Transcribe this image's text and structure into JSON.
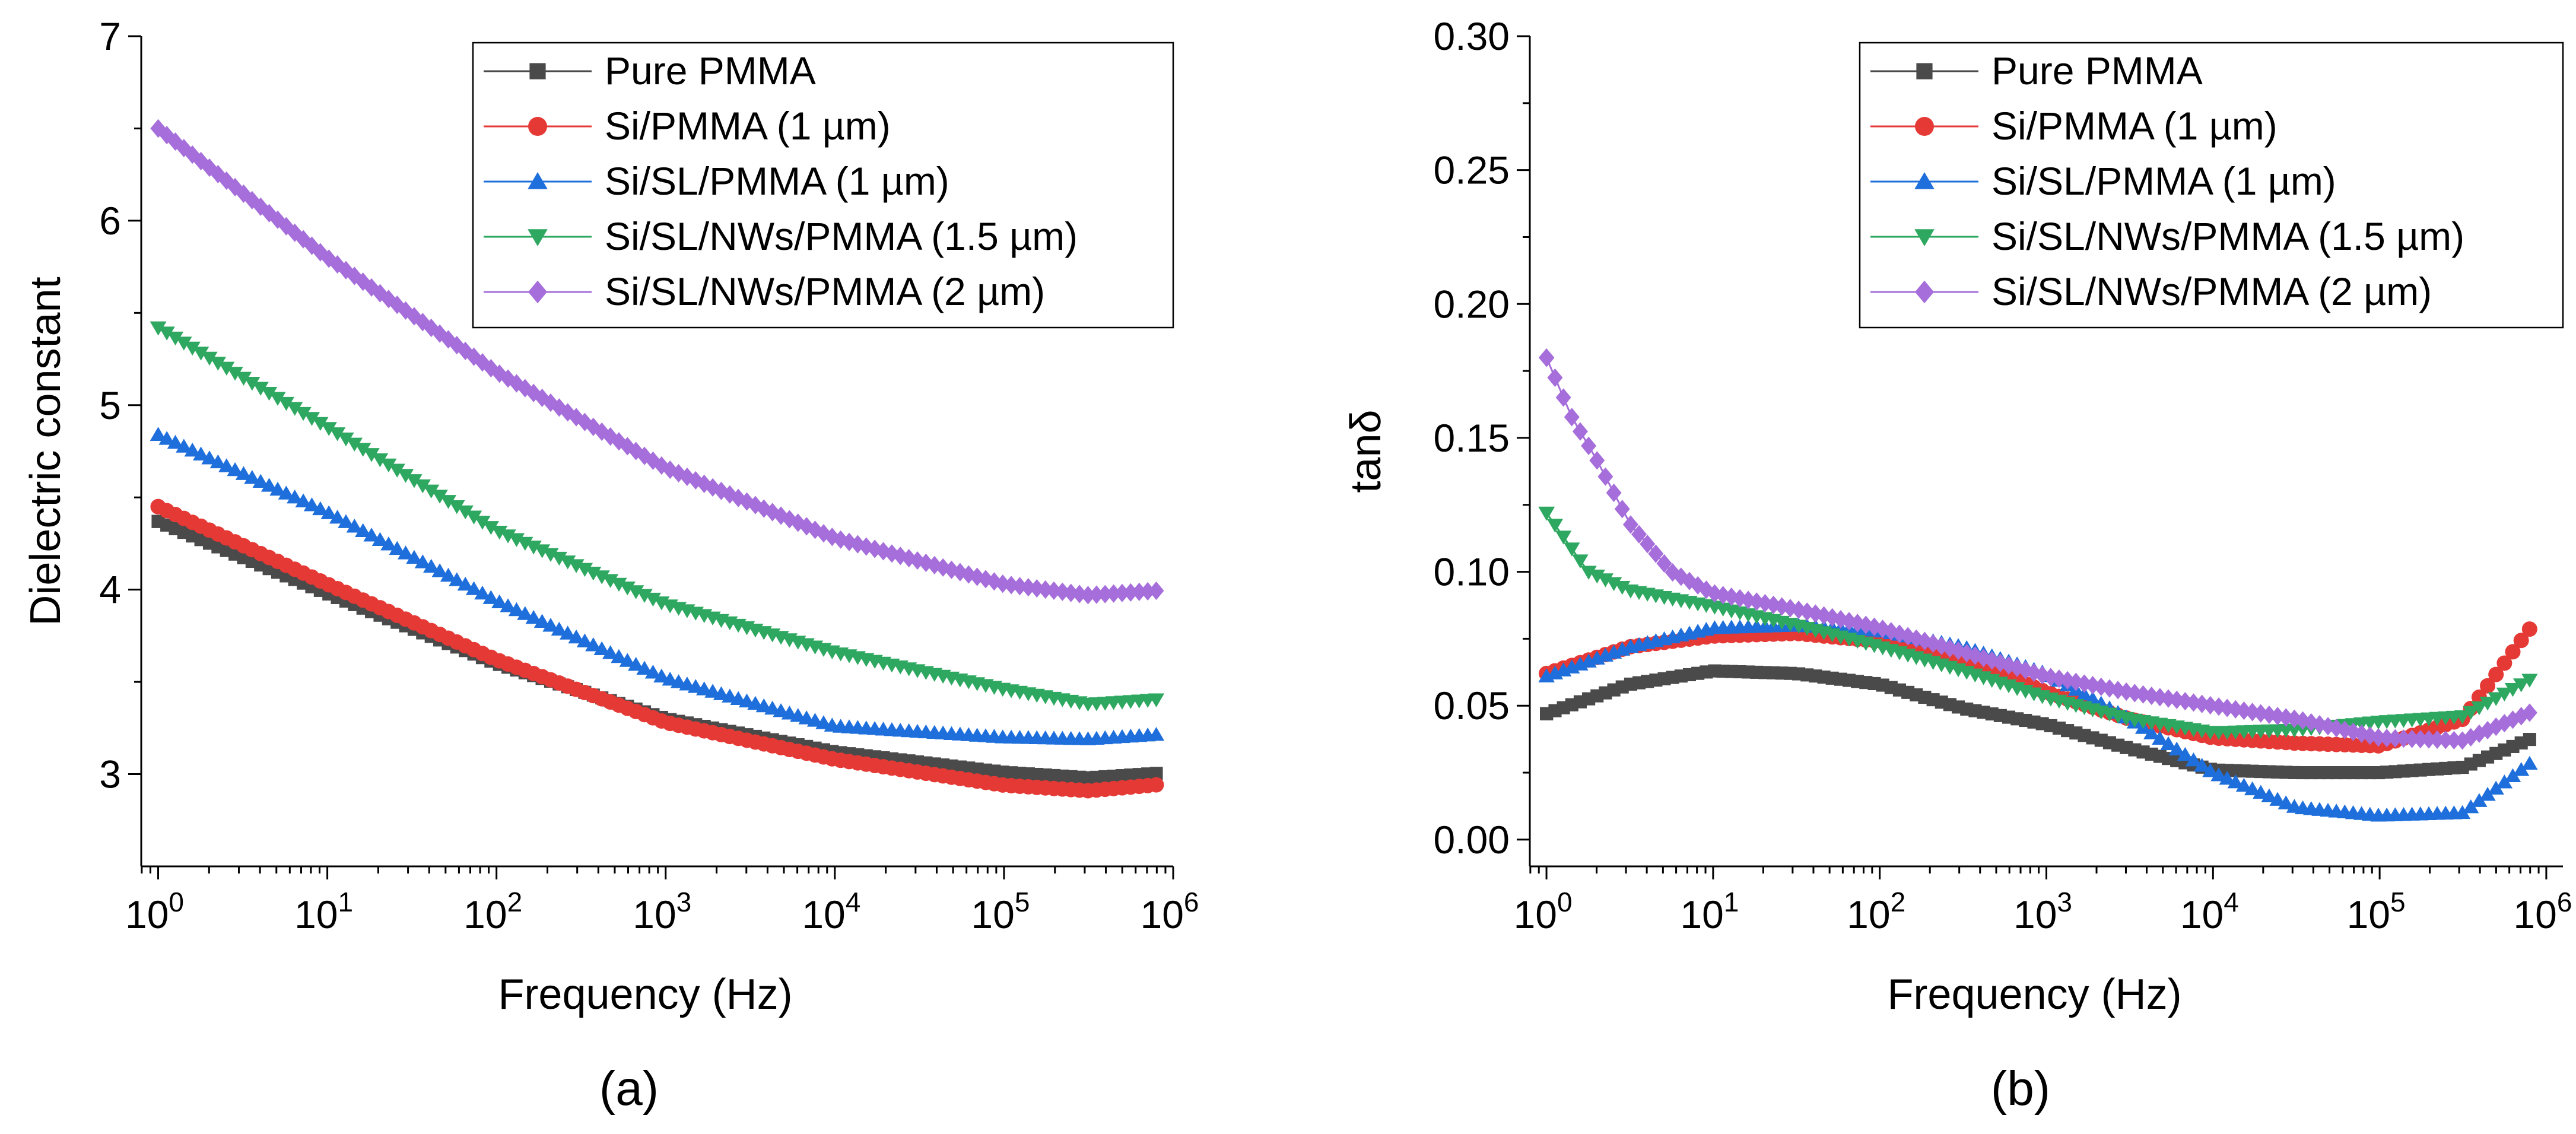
{
  "chart_data": [
    {
      "type": "scatter",
      "panel_label": "(a)",
      "xlabel": "Frequency (Hz)",
      "ylabel": "Dielectric constant",
      "xscale": "log",
      "xlim_log10": [
        -0.1,
        6.0
      ],
      "x_ticks": [
        {
          "base": "10",
          "exp": "0",
          "value": 1
        },
        {
          "base": "10",
          "exp": "1",
          "value": 10
        },
        {
          "base": "10",
          "exp": "2",
          "value": 100
        },
        {
          "base": "10",
          "exp": "3",
          "value": 1000
        },
        {
          "base": "10",
          "exp": "4",
          "value": 10000
        },
        {
          "base": "10",
          "exp": "5",
          "value": 100000
        },
        {
          "base": "10",
          "exp": "6",
          "value": 1000000
        }
      ],
      "ylim": [
        2.5,
        7.0
      ],
      "y_ticks": [
        "3",
        "4",
        "5",
        "6",
        "7"
      ],
      "legend_position": "top-right",
      "series": [
        {
          "name": "Pure PMMA",
          "color": "#4a4a4a",
          "marker": "square",
          "logf": [
            0,
            1,
            2,
            3,
            4,
            5,
            5.5,
            6
          ],
          "values": [
            4.37,
            3.98,
            3.6,
            3.3,
            3.12,
            3.01,
            2.98,
            3.01
          ]
        },
        {
          "name": "Si/PMMA (1 µm)",
          "color": "#e53935",
          "marker": "circle",
          "logf": [
            0,
            1,
            2,
            3,
            4,
            5,
            5.5,
            6
          ],
          "values": [
            4.45,
            4.03,
            3.62,
            3.28,
            3.08,
            2.94,
            2.91,
            2.95
          ]
        },
        {
          "name": "Si/SL/PMMA (1 µm)",
          "color": "#1e6fdc",
          "marker": "triangle-up",
          "logf": [
            0,
            1,
            2,
            3,
            4,
            5,
            5.5,
            6
          ],
          "values": [
            4.84,
            4.42,
            3.94,
            3.52,
            3.26,
            3.2,
            3.19,
            3.22
          ]
        },
        {
          "name": "Si/SL/NWs/PMMA (1.5 µm)",
          "color": "#2ea860",
          "marker": "triangle-down",
          "logf": [
            0,
            1,
            2,
            3,
            4,
            5,
            5.5,
            6
          ],
          "values": [
            5.42,
            4.88,
            4.32,
            3.92,
            3.66,
            3.46,
            3.38,
            3.41
          ]
        },
        {
          "name": "Si/SL/NWs/PMMA (2 µm)",
          "color": "#a66edb",
          "marker": "diamond",
          "logf": [
            0,
            1,
            2,
            3,
            4,
            5,
            5.5,
            6
          ],
          "values": [
            6.5,
            5.8,
            5.18,
            4.66,
            4.28,
            4.03,
            3.97,
            4.0
          ]
        }
      ]
    },
    {
      "type": "scatter",
      "panel_label": "(b)",
      "xlabel": "Frequency (Hz)",
      "ylabel": "tanδ",
      "xscale": "log",
      "xlim_log10": [
        -0.1,
        6.1
      ],
      "x_ticks": [
        {
          "base": "10",
          "exp": "0",
          "value": 1
        },
        {
          "base": "10",
          "exp": "1",
          "value": 10
        },
        {
          "base": "10",
          "exp": "2",
          "value": 100
        },
        {
          "base": "10",
          "exp": "3",
          "value": 1000
        },
        {
          "base": "10",
          "exp": "4",
          "value": 10000
        },
        {
          "base": "10",
          "exp": "5",
          "value": 100000
        },
        {
          "base": "10",
          "exp": "6",
          "value": 1000000
        }
      ],
      "ylim": [
        -0.01,
        0.3
      ],
      "y_ticks": [
        "0.00",
        "0.05",
        "0.10",
        "0.15",
        "0.20",
        "0.25",
        "0.30"
      ],
      "legend_position": "top-right",
      "series": [
        {
          "name": "Pure PMMA",
          "color": "#4a4a4a",
          "marker": "square",
          "logf": [
            0,
            0.5,
            1,
            1.5,
            2,
            2.5,
            3,
            3.5,
            4,
            4.5,
            5,
            5.5,
            6
          ],
          "values": [
            0.047,
            0.058,
            0.063,
            0.062,
            0.058,
            0.049,
            0.043,
            0.034,
            0.026,
            0.025,
            0.025,
            0.027,
            0.04
          ]
        },
        {
          "name": "Si/PMMA (1 µm)",
          "color": "#e53935",
          "marker": "circle",
          "logf": [
            0,
            0.5,
            1,
            1.5,
            2,
            2.5,
            3,
            3.5,
            4,
            4.5,
            5,
            5.5,
            6
          ],
          "values": [
            0.062,
            0.072,
            0.076,
            0.077,
            0.074,
            0.068,
            0.055,
            0.045,
            0.038,
            0.036,
            0.035,
            0.045,
            0.087
          ]
        },
        {
          "name": "Si/SL/PMMA (1 µm)",
          "color": "#1e6fdc",
          "marker": "triangle-up",
          "logf": [
            0,
            0.5,
            1,
            1.5,
            2,
            2.5,
            3,
            3.5,
            4,
            4.5,
            5,
            5.5,
            6
          ],
          "values": [
            0.061,
            0.072,
            0.079,
            0.08,
            0.078,
            0.072,
            0.062,
            0.045,
            0.025,
            0.012,
            0.009,
            0.01,
            0.033
          ]
        },
        {
          "name": "Si/SL/NWs/PMMA (1.5 µm)",
          "color": "#2ea860",
          "marker": "triangle-down",
          "logf": [
            0,
            0.25,
            0.5,
            1,
            1.5,
            2,
            2.5,
            3,
            3.5,
            4,
            4.5,
            5,
            5.5,
            6
          ],
          "values": [
            0.122,
            0.1,
            0.093,
            0.087,
            0.08,
            0.072,
            0.063,
            0.053,
            0.045,
            0.04,
            0.041,
            0.044,
            0.046,
            0.063
          ]
        },
        {
          "name": "Si/SL/NWs/PMMA (2 µm)",
          "color": "#a66edb",
          "marker": "diamond",
          "logf": [
            0,
            0.15,
            0.3,
            0.5,
            0.75,
            1,
            1.5,
            2,
            2.5,
            3,
            3.5,
            4,
            4.5,
            5,
            5.5,
            6
          ],
          "values": [
            0.18,
            0.158,
            0.142,
            0.118,
            0.1,
            0.092,
            0.086,
            0.079,
            0.07,
            0.061,
            0.055,
            0.05,
            0.045,
            0.038,
            0.037,
            0.05
          ]
        }
      ]
    }
  ]
}
